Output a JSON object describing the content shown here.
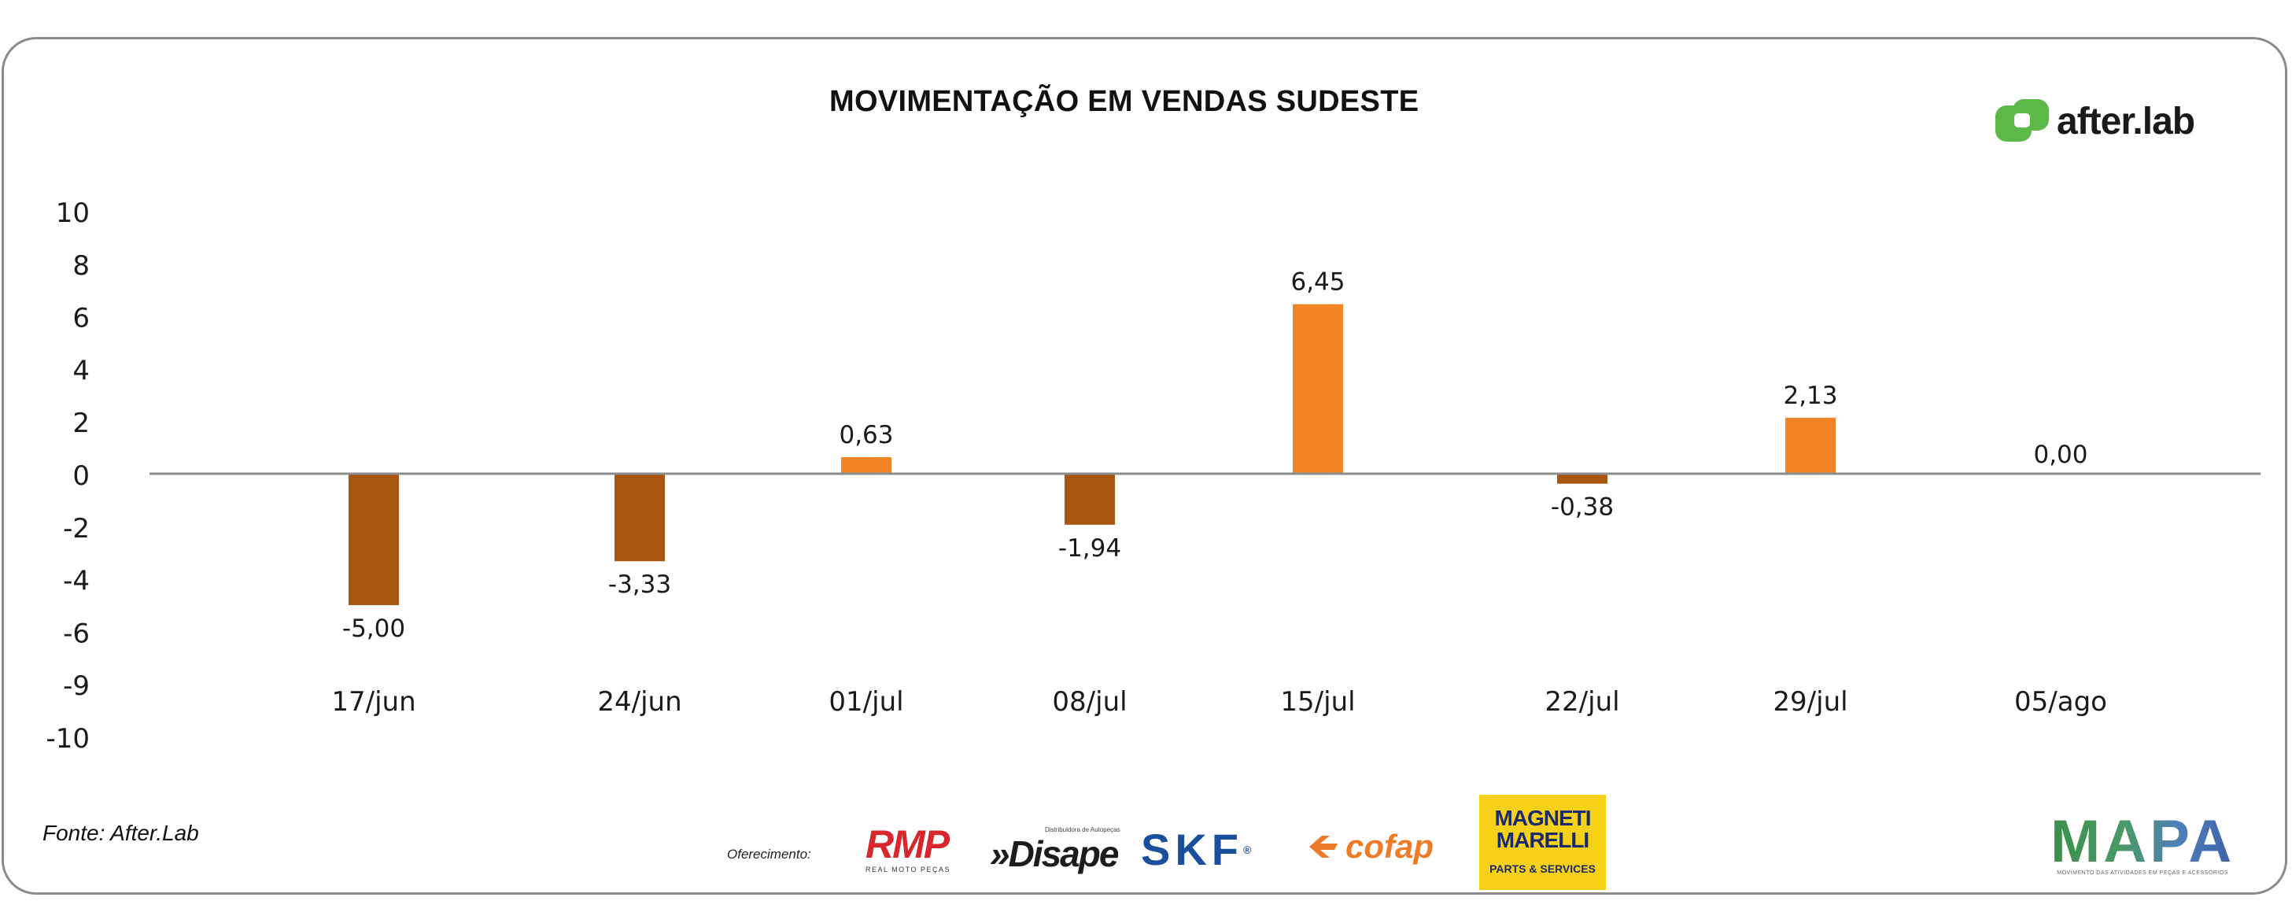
{
  "chart_data": {
    "type": "bar",
    "title": "MOVIMENTAÇÃO EM VENDAS SUDESTE",
    "categories": [
      "17/jun",
      "24/jun",
      "01/jul",
      "08/jul",
      "15/jul",
      "22/jul",
      "29/jul",
      "05/ago"
    ],
    "values": [
      -5.0,
      -3.33,
      0.63,
      -1.94,
      6.45,
      -0.38,
      2.13,
      0.0
    ],
    "value_labels": [
      "-5,00",
      "-3,33",
      "0,63",
      "-1,94",
      "6,45",
      "-0,38",
      "2,13",
      "0,00"
    ],
    "y_ticks": [
      10,
      8,
      6,
      4,
      2,
      0,
      -2,
      -4,
      -6,
      -9,
      -10
    ],
    "ylim": [
      -10,
      10
    ],
    "xlabel": "",
    "ylabel": "",
    "grid": false,
    "legend": "none",
    "colors": {
      "positive": "#f28423",
      "negative": "#a8550f",
      "axis": "#8c8c8c",
      "text": "#1a1a1a"
    }
  },
  "brand": {
    "name": "after.lab",
    "icon": "after-lab-logo-icon",
    "color": "#5cb847"
  },
  "footer": {
    "source": "Fonte: After.Lab",
    "sponsor_label": "Oferecimento:",
    "sponsors": {
      "rmp": {
        "name": "RMP",
        "sub": "REAL MOTO PEÇAS"
      },
      "disape": {
        "name": "»Disape",
        "sub": "Distribuidora de Autopeças"
      },
      "skf": {
        "name": "SKF",
        "mark": "®"
      },
      "cofap": {
        "name": "cofap",
        "icon": "cofap-icon"
      },
      "magneti": {
        "name_line1": "MAGNETI",
        "name_line2": "MARELLI",
        "sub": "PARTS & SERVICES"
      },
      "mapa": {
        "name": "MAPA",
        "sub": "MOVIMENTO DAS ATIVIDADES EM PEÇAS E ACESSÓRIOS"
      }
    }
  }
}
